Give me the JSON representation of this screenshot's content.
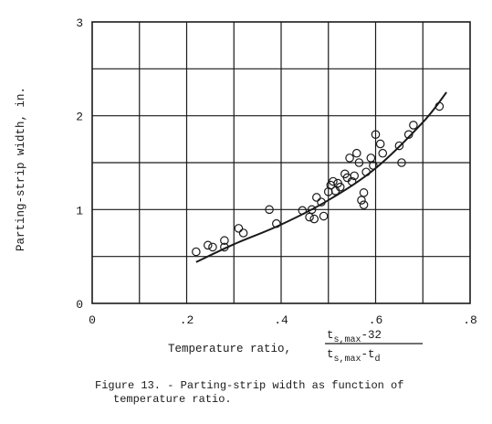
{
  "chart_data": {
    "type": "scatter",
    "title": "",
    "xlabel": "Temperature ratio,",
    "ylabel": "Parting-strip width, in.",
    "xlim": [
      0,
      0.8
    ],
    "ylim": [
      0,
      3
    ],
    "grid": true,
    "x_ticks": [
      "0",
      ".2",
      ".4",
      ".6",
      ".8"
    ],
    "y_ticks": [
      "0",
      "1",
      "2",
      "3"
    ],
    "x_expression": {
      "numerator_main": "t",
      "numerator_sub": "s,max",
      "numerator_rest": "-32",
      "denominator_main": "t",
      "denominator_sub": "s,max",
      "denominator_rest": "-t",
      "denominator_sub2": "d"
    },
    "series": [
      {
        "marker": "open-circle",
        "points": [
          [
            0.22,
            0.55
          ],
          [
            0.245,
            0.62
          ],
          [
            0.255,
            0.6
          ],
          [
            0.28,
            0.6
          ],
          [
            0.28,
            0.67
          ],
          [
            0.31,
            0.8
          ],
          [
            0.32,
            0.75
          ],
          [
            0.375,
            1.0
          ],
          [
            0.39,
            0.85
          ],
          [
            0.445,
            0.99
          ],
          [
            0.46,
            0.92
          ],
          [
            0.465,
            1.0
          ],
          [
            0.47,
            0.9
          ],
          [
            0.475,
            1.13
          ],
          [
            0.485,
            1.08
          ],
          [
            0.49,
            0.93
          ],
          [
            0.5,
            1.19
          ],
          [
            0.505,
            1.26
          ],
          [
            0.51,
            1.3
          ],
          [
            0.515,
            1.2
          ],
          [
            0.52,
            1.28
          ],
          [
            0.525,
            1.24
          ],
          [
            0.535,
            1.38
          ],
          [
            0.54,
            1.34
          ],
          [
            0.545,
            1.55
          ],
          [
            0.55,
            1.3
          ],
          [
            0.555,
            1.36
          ],
          [
            0.56,
            1.6
          ],
          [
            0.565,
            1.5
          ],
          [
            0.57,
            1.1
          ],
          [
            0.575,
            1.05
          ],
          [
            0.575,
            1.18
          ],
          [
            0.58,
            1.4
          ],
          [
            0.59,
            1.55
          ],
          [
            0.595,
            1.47
          ],
          [
            0.6,
            1.8
          ],
          [
            0.61,
            1.7
          ],
          [
            0.615,
            1.6
          ],
          [
            0.65,
            1.68
          ],
          [
            0.655,
            1.5
          ],
          [
            0.67,
            1.8
          ],
          [
            0.68,
            1.9
          ],
          [
            0.735,
            2.1
          ]
        ]
      },
      {
        "marker": "line",
        "points": [
          [
            0.22,
            0.44
          ],
          [
            0.3,
            0.63
          ],
          [
            0.4,
            0.84
          ],
          [
            0.5,
            1.1
          ],
          [
            0.6,
            1.44
          ],
          [
            0.7,
            1.93
          ],
          [
            0.75,
            2.25
          ]
        ]
      }
    ]
  },
  "caption": {
    "line1": "Figure 13. - Parting-strip width as function of",
    "line2": "temperature ratio."
  }
}
